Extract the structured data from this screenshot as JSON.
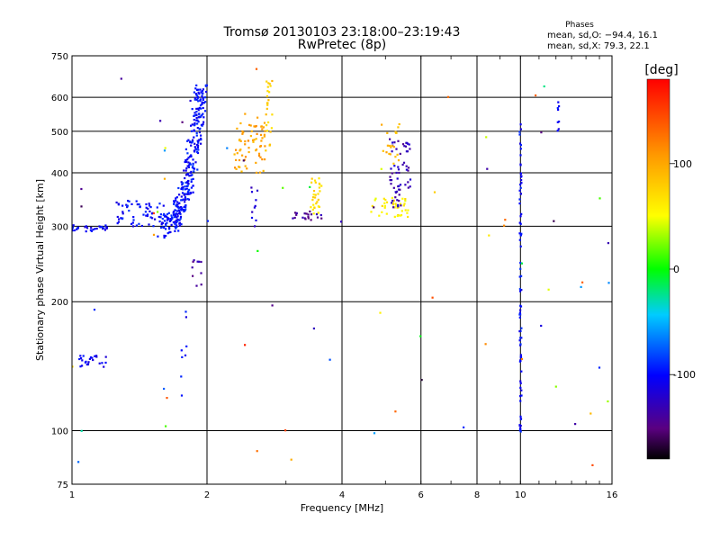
{
  "title_line1": "Tromsø 20130103 23:18:00–23:19:43",
  "title_line2": "RwPretec (8p)",
  "phase_header": "Phases",
  "phase_stats": [
    "mean, sd,O: −94.4, 16.1",
    "mean, sd,X:  79.3, 22.1"
  ],
  "xlabel": "Frequency [MHz]",
  "ylabel": "Stationary phase Virtual Height [km]",
  "colorbar_unit": "[deg]",
  "chart_data": {
    "type": "scatter",
    "x_scale": "log",
    "y_scale": "log",
    "xlim": [
      1,
      16
    ],
    "ylim": [
      75,
      750
    ],
    "x_ticks": [
      1,
      2,
      4,
      6,
      8,
      10,
      16
    ],
    "y_ticks": [
      75,
      100,
      200,
      300,
      400,
      500,
      600,
      750
    ],
    "colorbar": {
      "range": [
        -180,
        180
      ],
      "ticks": [
        100,
        0,
        -100
      ]
    },
    "clusters": [
      {
        "x": [
          1.55,
          1.95
        ],
        "y": [
          300,
          640
        ],
        "shape": "curve",
        "phase": -100,
        "n": 320
      },
      {
        "x": [
          1.25,
          1.6
        ],
        "y": [
          300,
          345
        ],
        "shape": "band",
        "phase": -100,
        "n": 60
      },
      {
        "x": [
          1.0,
          1.2
        ],
        "y": [
          292,
          302
        ],
        "shape": "band",
        "phase": -105,
        "n": 30
      },
      {
        "x": [
          1.03,
          1.2
        ],
        "y": [
          140,
          150
        ],
        "shape": "band",
        "phase": -105,
        "n": 25
      },
      {
        "x": [
          2.3,
          2.7
        ],
        "y": [
          400,
          550
        ],
        "shape": "cloud",
        "phase": 100,
        "n": 70
      },
      {
        "x": [
          2.7,
          2.8
        ],
        "y": [
          450,
          660
        ],
        "shape": "band",
        "phase": 80,
        "n": 25
      },
      {
        "x": [
          3.4,
          3.6
        ],
        "y": [
          320,
          390
        ],
        "shape": "cloud",
        "phase": 70,
        "n": 30
      },
      {
        "x": [
          3.1,
          3.6
        ],
        "y": [
          310,
          325
        ],
        "shape": "band",
        "phase": -140,
        "n": 20
      },
      {
        "x": [
          4.6,
          5.7
        ],
        "y": [
          315,
          350
        ],
        "shape": "cloud",
        "phase": 60,
        "n": 40
      },
      {
        "x": [
          5.1,
          5.7
        ],
        "y": [
          330,
          480
        ],
        "shape": "cloud",
        "phase": -130,
        "n": 60
      },
      {
        "x": [
          4.9,
          5.4
        ],
        "y": [
          420,
          520
        ],
        "shape": "cloud",
        "phase": 90,
        "n": 20
      },
      {
        "x": [
          9.95,
          10.05
        ],
        "y": [
          90,
          520
        ],
        "shape": "column",
        "phase": -100,
        "n": 80
      },
      {
        "x": [
          12.1,
          12.2
        ],
        "y": [
          500,
          600
        ],
        "shape": "band",
        "phase": -105,
        "n": 8
      },
      {
        "x": [
          1.85,
          1.95
        ],
        "y": [
          215,
          255
        ],
        "shape": "band",
        "phase": -140,
        "n": 10
      },
      {
        "x": [
          1.75,
          1.8
        ],
        "y": [
          120,
          190
        ],
        "shape": "column",
        "phase": -100,
        "n": 8
      },
      {
        "x": [
          2.5,
          2.6
        ],
        "y": [
          300,
          370
        ],
        "shape": "column",
        "phase": -120,
        "n": 10
      },
      {
        "x": [
          1.0,
          16.0
        ],
        "y": [
          80,
          700
        ],
        "shape": "scatter",
        "phase": null,
        "n": 70
      }
    ]
  }
}
